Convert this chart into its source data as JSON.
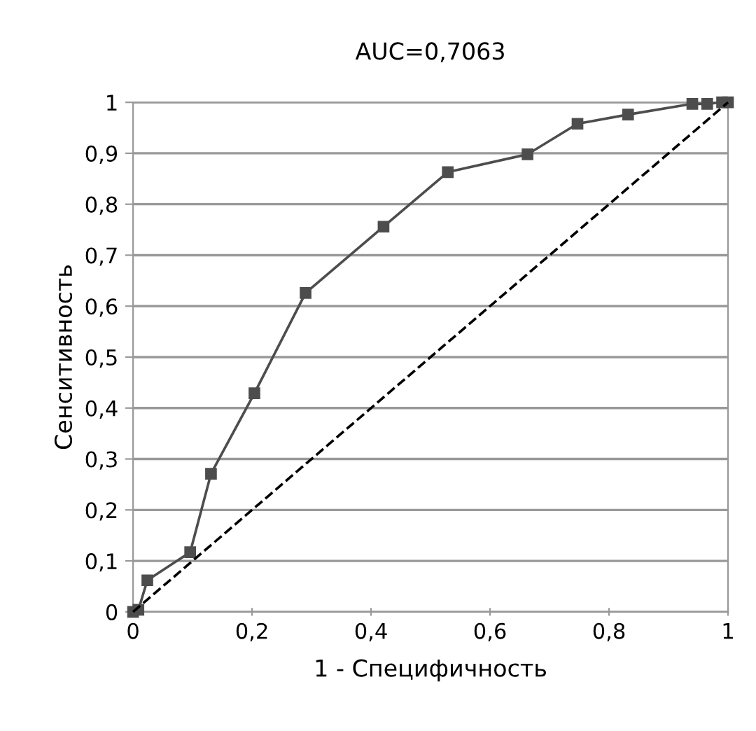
{
  "chart_data": {
    "type": "line",
    "title": "AUC=0,7063",
    "xlabel": "1 - Специфичность",
    "ylabel": "Сенситивность",
    "series": [
      {
        "x": [
          0,
          0.009,
          0.024,
          0.096,
          0.131,
          0.204,
          0.29,
          0.421,
          0.529,
          0.663,
          0.747,
          0.832,
          0.94,
          0.965,
          0.99,
          1
        ],
        "values": [
          0,
          0.004,
          0.062,
          0.117,
          0.271,
          0.429,
          0.626,
          0.756,
          0.863,
          0.898,
          0.958,
          0.976,
          0.997,
          0.997,
          1,
          1
        ],
        "color": "#4d4d4d",
        "marker": "square",
        "line_style": "solid"
      },
      {
        "x": [
          0,
          1
        ],
        "values": [
          0,
          1
        ],
        "color": "#000000",
        "marker": "none",
        "line_style": "dashed"
      }
    ],
    "xlim": [
      0,
      1
    ],
    "ylim": [
      0,
      1
    ],
    "xticks": [
      0,
      {
        "value": 0.2,
        "label": "0,2"
      },
      {
        "value": 0.4,
        "label": "0,4"
      },
      {
        "value": 0.6,
        "label": "0,6"
      },
      {
        "value": 0.8,
        "label": "0,8"
      },
      1
    ],
    "yticks": [
      0,
      {
        "value": 0.1,
        "label": "0,1"
      },
      {
        "value": 0.2,
        "label": "0,2"
      },
      {
        "value": 0.3,
        "label": "0,3"
      },
      {
        "value": 0.4,
        "label": "0,4"
      },
      {
        "value": 0.5,
        "label": "0,5"
      },
      {
        "value": 0.6,
        "label": "0,6"
      },
      {
        "value": 0.7,
        "label": "0,7"
      },
      {
        "value": 0.8,
        "label": "0,8"
      },
      {
        "value": 0.9,
        "label": "0,9"
      },
      1
    ],
    "grid": "y",
    "legend": false
  }
}
